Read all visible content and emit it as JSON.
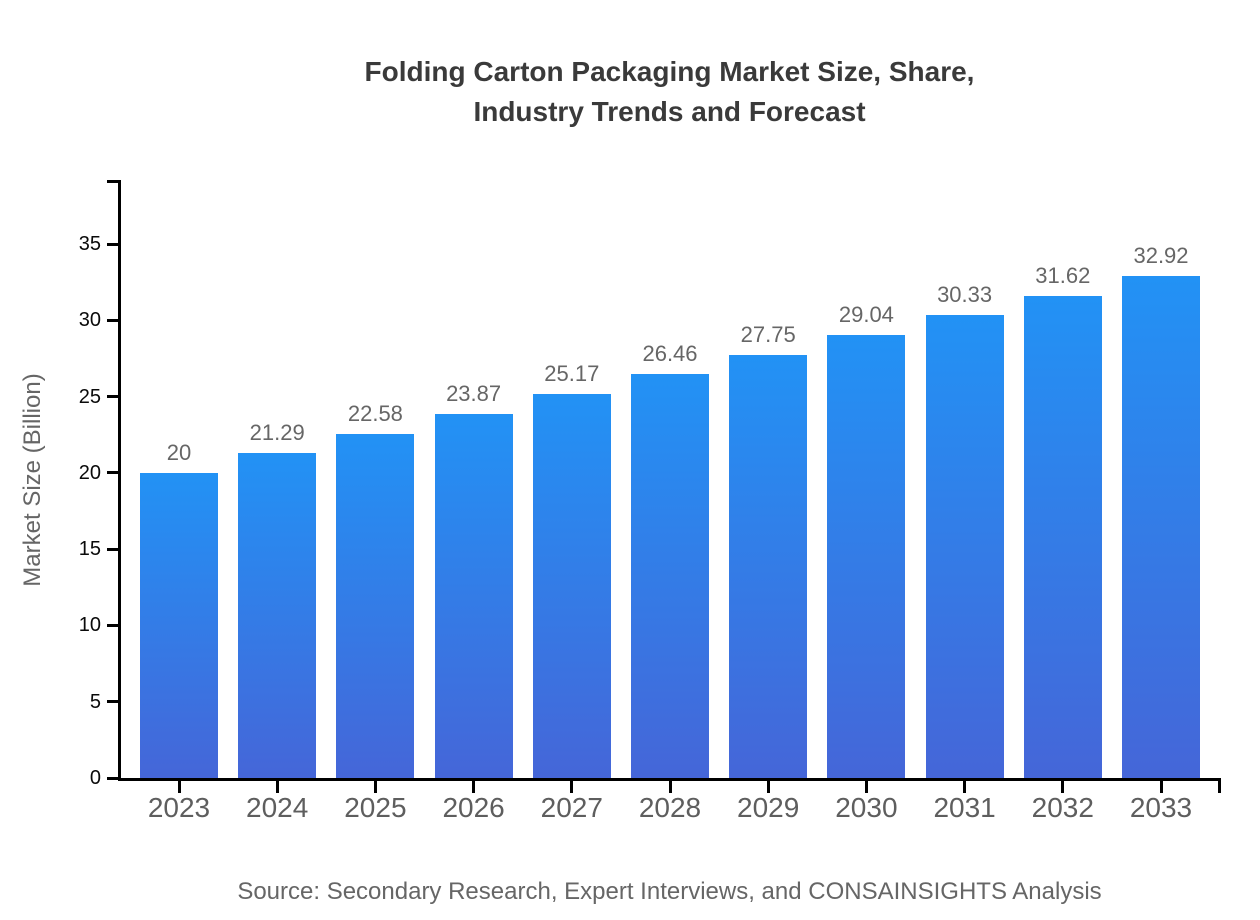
{
  "title_lines": [
    "Folding Carton Packaging Market Size, Share,",
    "Industry Trends and Forecast"
  ],
  "source": {
    "text": "Source: Secondary Research, Expert Interviews, and CONSAINSIGHTS Analysis"
  },
  "chart_data": {
    "type": "bar",
    "title": "Folding Carton Packaging Market Size, Share, Industry Trends and Forecast",
    "categories": [
      "2023",
      "2024",
      "2025",
      "2026",
      "2027",
      "2028",
      "2029",
      "2030",
      "2031",
      "2032",
      "2033"
    ],
    "values": [
      20,
      21.29,
      22.58,
      23.87,
      25.17,
      26.46,
      27.75,
      29.04,
      30.33,
      31.62,
      32.92
    ],
    "value_labels": [
      "20",
      "21.29",
      "22.58",
      "23.87",
      "25.17",
      "26.46",
      "27.75",
      "29.04",
      "30.33",
      "31.62",
      "32.92"
    ],
    "xlabel": "",
    "ylabel": "Market Size (Billion)",
    "ylim": [
      0,
      39.2
    ],
    "yticks": [
      0,
      5,
      10,
      15,
      20,
      25,
      30,
      35
    ],
    "grid": false,
    "legend_position": "none",
    "colors": {
      "bar_gradient_top": "#2292F5",
      "bar_gradient_bottom": "#4566D8",
      "axis": "#000000",
      "y_tick_label": "#0A0A0A",
      "category_label": "#5E5E5E",
      "value_label": "#666666",
      "title": "#3A3A3A",
      "ylabel": "#666666",
      "source": "#666666",
      "background": "#FFFFFF"
    }
  }
}
